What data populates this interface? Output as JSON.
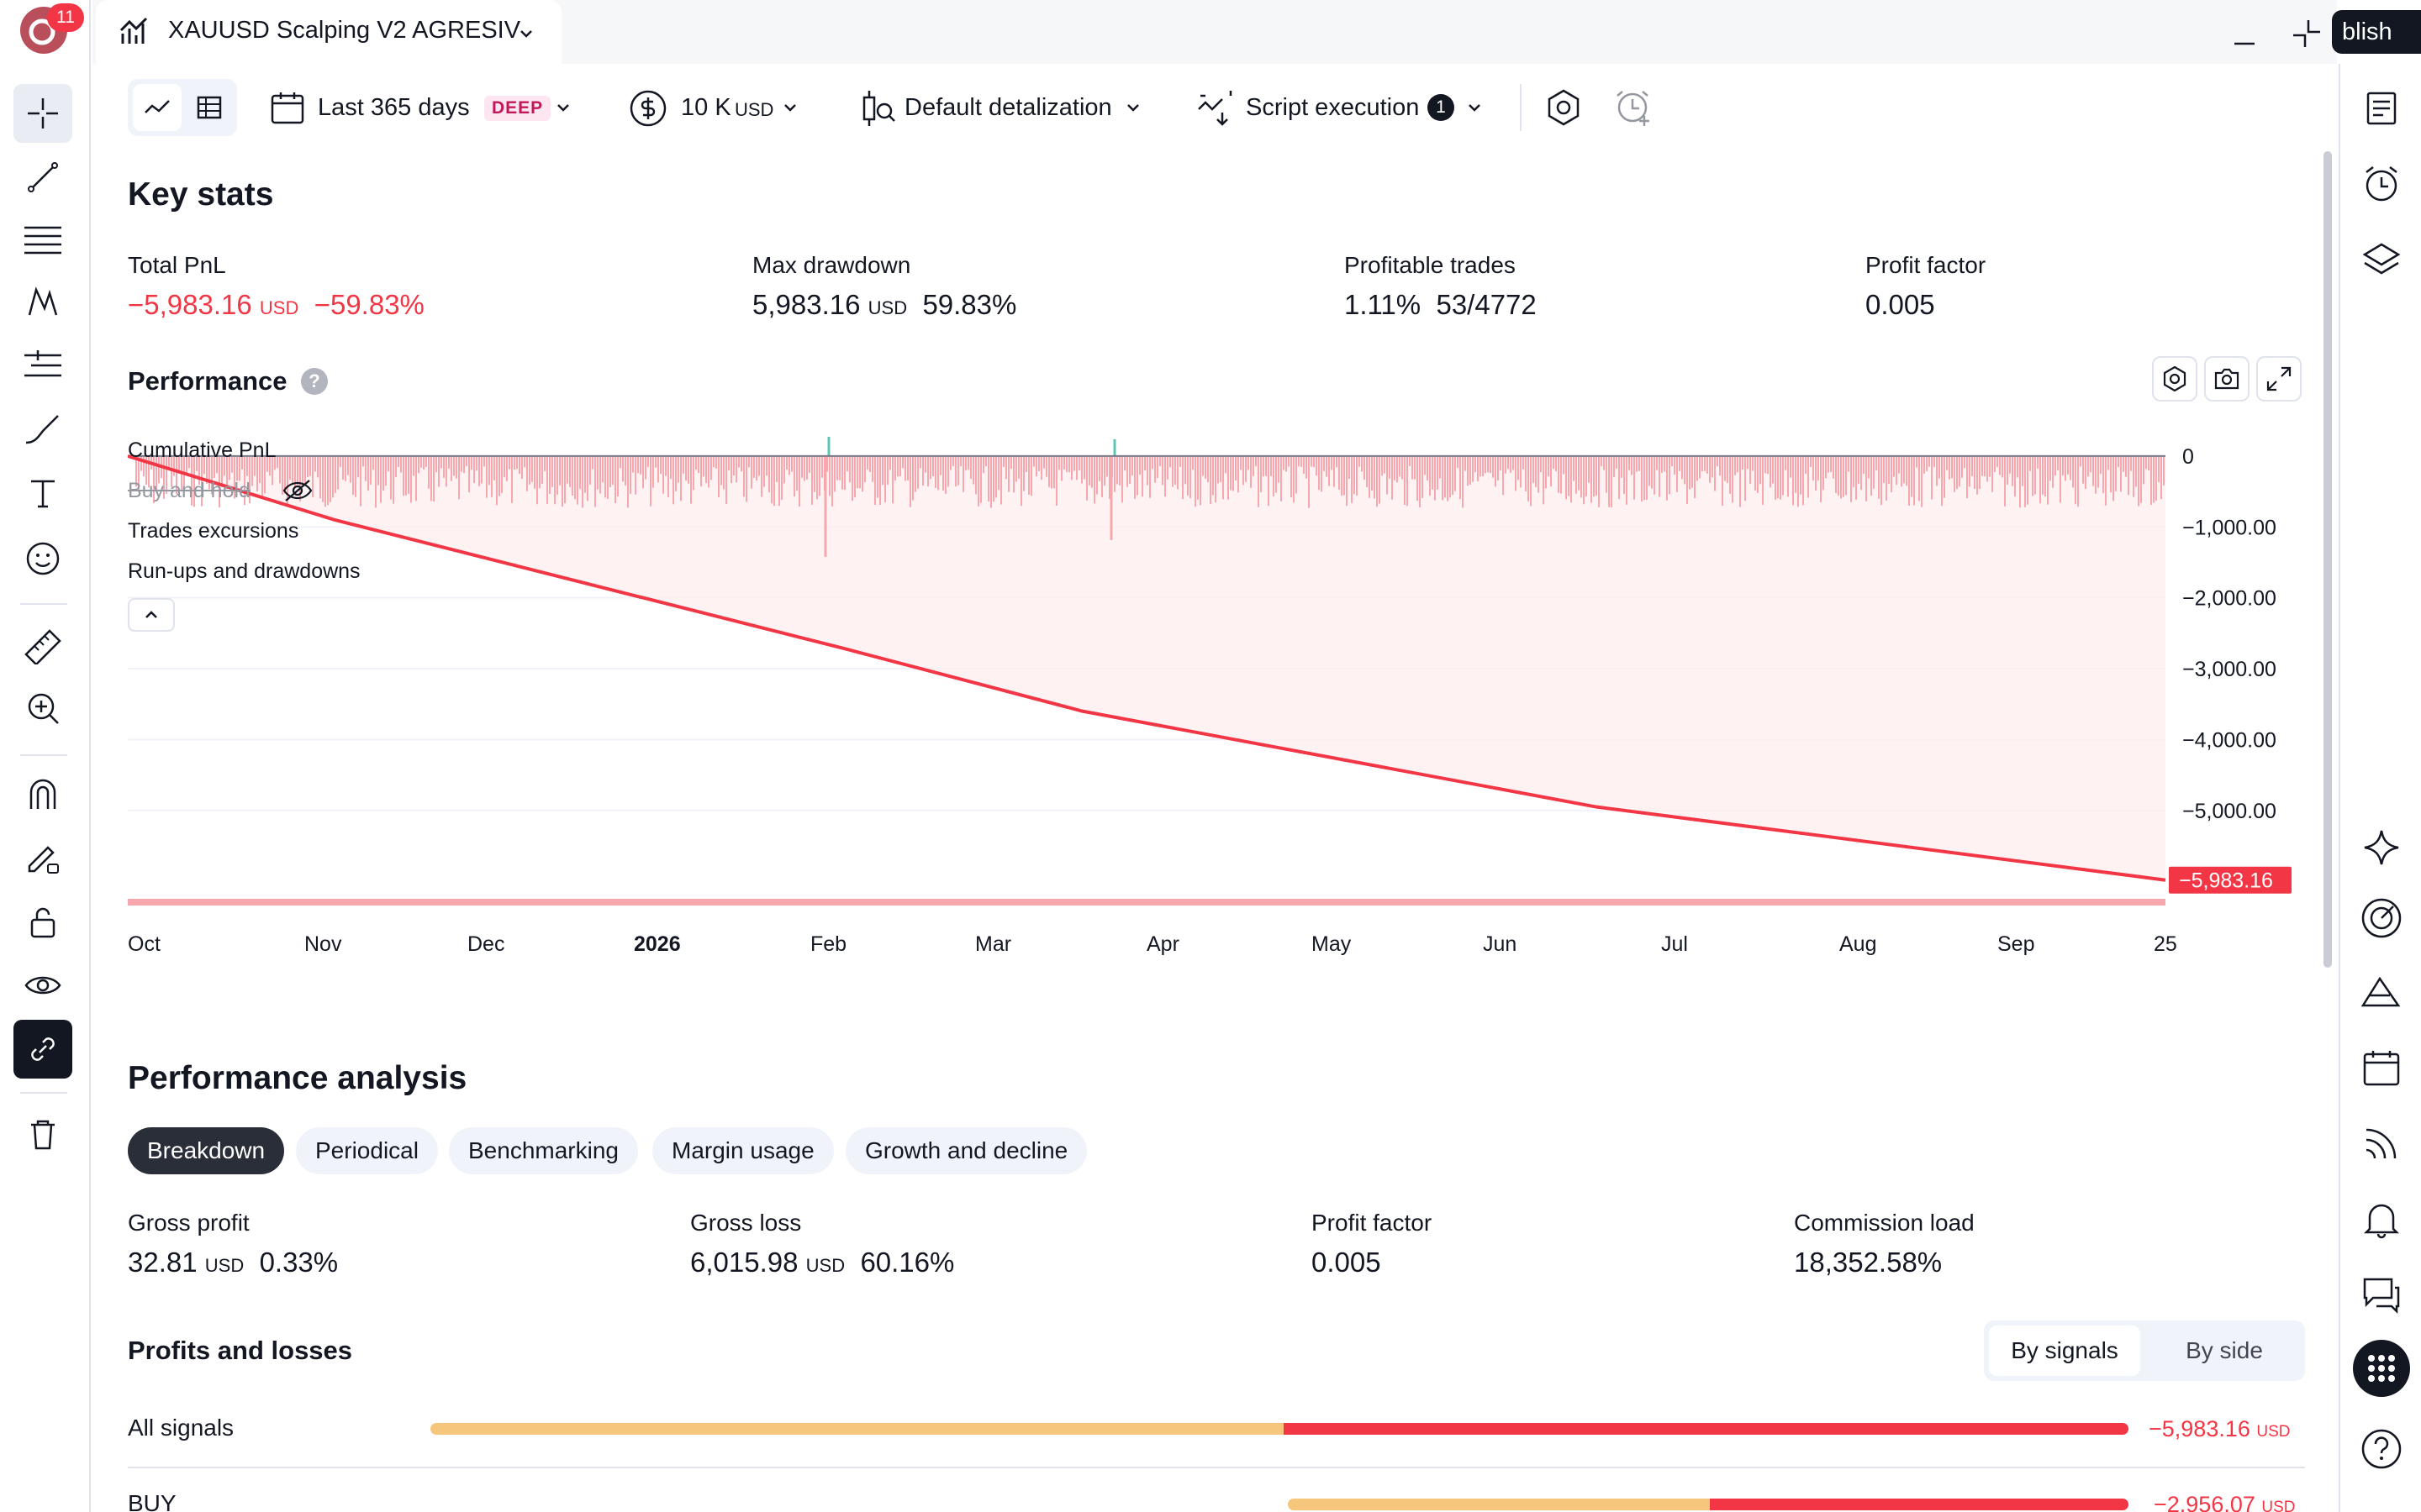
{
  "tab": {
    "title": "XAUUSD Scalping V2 AGRESIV",
    "badge_count": "11",
    "publish_label": "blish"
  },
  "toolbar": {
    "range_label": "Last 365 days",
    "range_badge": "DEEP",
    "capital_value": "10 K",
    "capital_unit": "USD",
    "detalization_label": "Default detalization",
    "script_label": "Script execution",
    "script_count": "1"
  },
  "key_stats": {
    "title": "Key stats",
    "total_pnl": {
      "label": "Total PnL",
      "value": "−5,983.16",
      "unit": "USD",
      "pct": "−59.83%"
    },
    "max_drawdown": {
      "label": "Max drawdown",
      "value": "5,983.16",
      "unit": "USD",
      "pct": "59.83%"
    },
    "profitable_trades": {
      "label": "Profitable trades",
      "pct": "1.11%",
      "ratio": "53/4772"
    },
    "profit_factor": {
      "label": "Profit factor",
      "value": "0.005"
    }
  },
  "performance": {
    "title": "Performance",
    "legend": [
      "Cumulative PnL",
      "Buy and hold",
      "Trades excursions",
      "Run-ups and drawdowns"
    ],
    "last_value_label": "−5,983.16"
  },
  "chart_data": {
    "type": "line",
    "title": "Performance",
    "x_ticks": [
      "Oct",
      "Nov",
      "Dec",
      "2026",
      "Feb",
      "Mar",
      "Apr",
      "May",
      "Jun",
      "Jul",
      "Aug",
      "Sep",
      "25"
    ],
    "y_ticks": [
      "0",
      "−1,000.00",
      "−2,000.00",
      "−3,000.00",
      "−4,000.00",
      "−5,000.00"
    ],
    "ylim": [
      -6200,
      200
    ],
    "series": [
      {
        "name": "Cumulative PnL",
        "color": "#f23645",
        "x": [
          "2025-09-25",
          "2025-11-01",
          "2026-02-01",
          "2026-03-15",
          "2026-06-15",
          "2026-09-25"
        ],
        "y": [
          0,
          -900,
          -2730,
          -3600,
          -4950,
          -5983.16
        ]
      }
    ],
    "grid": true
  },
  "analysis": {
    "title": "Performance analysis",
    "tabs": [
      "Breakdown",
      "Periodical",
      "Benchmarking",
      "Margin usage",
      "Growth and decline"
    ],
    "gross_profit": {
      "label": "Gross profit",
      "value": "32.81",
      "unit": "USD",
      "pct": "0.33%"
    },
    "gross_loss": {
      "label": "Gross loss",
      "value": "6,015.98",
      "unit": "USD",
      "pct": "60.16%"
    },
    "profit_factor": {
      "label": "Profit factor",
      "value": "0.005"
    },
    "commission_load": {
      "label": "Commission load",
      "value": "18,352.58%"
    }
  },
  "pnl": {
    "title": "Profits and losses",
    "by_signals": "By signals",
    "by_side": "By side",
    "rows": [
      {
        "label": "All signals",
        "value": "−5,983.16",
        "unit": "USD",
        "share": 1.0
      },
      {
        "label": "BUY",
        "value": "−2,956.07",
        "unit": "USD",
        "share": 0.494
      }
    ]
  },
  "colors": {
    "negative": "#f23645",
    "bar_positive": "#f7c67d",
    "accent": "#2962ff"
  }
}
